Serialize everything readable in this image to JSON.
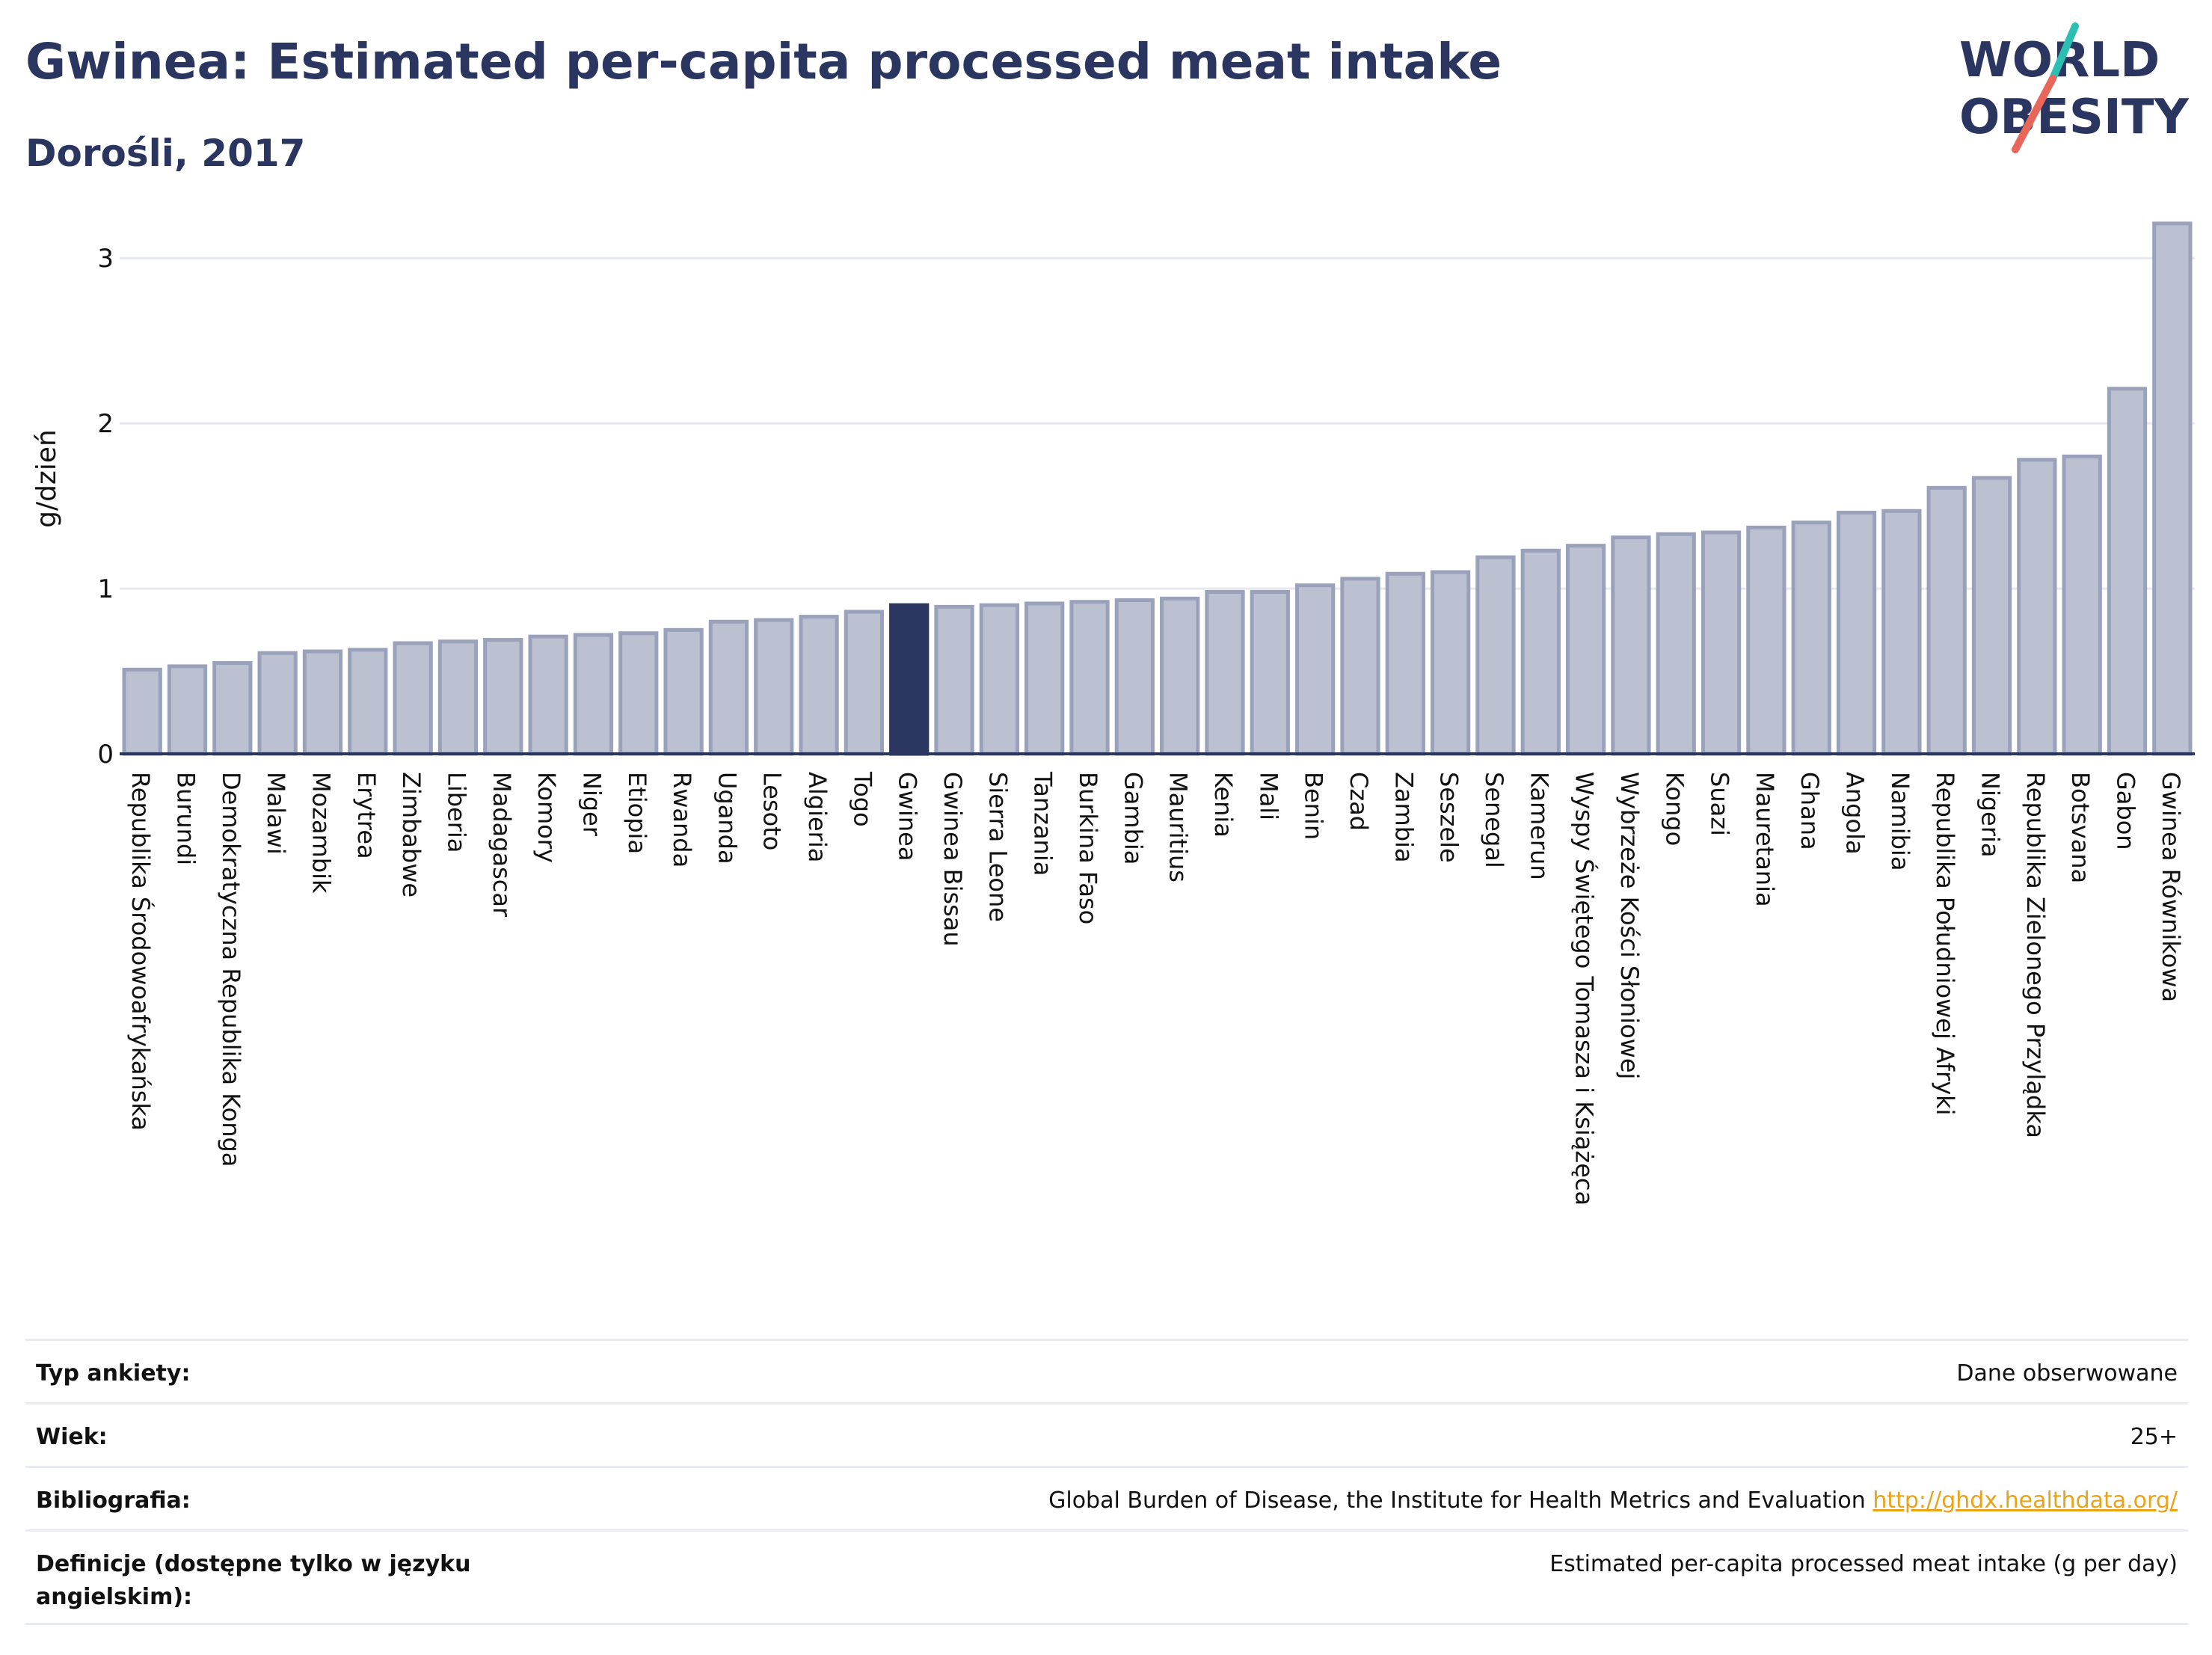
{
  "header": {
    "title": "Gwinea: Estimated per-capita processed meat intake",
    "subtitle": "Dorośli, 2017"
  },
  "logo": {
    "line1": "WORLD",
    "line2": "OBESITY",
    "colors": {
      "text": "#2b3660",
      "teal": "#2bbfb3",
      "coral": "#e8665a"
    }
  },
  "chart_data": {
    "type": "bar",
    "ylabel": "g/dzień",
    "ylim": [
      0,
      3.25
    ],
    "yticks": [
      "0",
      "1",
      "2",
      "3"
    ],
    "grid": true,
    "highlight": "Gwinea",
    "colors": {
      "bar": "#bcc1d1",
      "bar_edge": "#9aa1ba",
      "highlight": "#2b3660"
    },
    "categories": [
      "Republika Środowoafrykańska",
      "Burundi",
      "Demokratyczna Republika Konga",
      "Malawi",
      "Mozambik",
      "Erytrea",
      "Zimbabwe",
      "Liberia",
      "Madagascar",
      "Komory",
      "Niger",
      "Etiopia",
      "Rwanda",
      "Uganda",
      "Lesoto",
      "Algieria",
      "Togo",
      "Gwinea",
      "Gwinea Bissau",
      "Sierra Leone",
      "Tanzania",
      "Burkina Faso",
      "Gambia",
      "Mauritius",
      "Kenia",
      "Mali",
      "Benin",
      "Czad",
      "Zambia",
      "Seszele",
      "Senegal",
      "Kamerun",
      "Wyspy Świętego Tomasza i Książęca",
      "Wybrzeże Kości Słoniowej",
      "Kongo",
      "Suazi",
      "Mauretania",
      "Ghana",
      "Angola",
      "Namibia",
      "Republika Południowej Afryki",
      "Nigeria",
      "Republika Zielonego Przylądka",
      "Botsvana",
      "Gabon",
      "Gwinea Równikowa"
    ],
    "values": [
      0.51,
      0.53,
      0.55,
      0.61,
      0.62,
      0.63,
      0.67,
      0.68,
      0.69,
      0.71,
      0.72,
      0.73,
      0.75,
      0.8,
      0.81,
      0.83,
      0.86,
      0.9,
      0.89,
      0.9,
      0.91,
      0.92,
      0.93,
      0.94,
      0.98,
      0.98,
      1.02,
      1.06,
      1.09,
      1.1,
      1.19,
      1.23,
      1.26,
      1.31,
      1.33,
      1.34,
      1.37,
      1.4,
      1.46,
      1.47,
      1.61,
      1.67,
      1.78,
      1.8,
      2.21,
      3.21
    ]
  },
  "info": {
    "rows": [
      {
        "label": "Typ ankiety:",
        "value": "Dane obserwowane"
      },
      {
        "label": "Wiek:",
        "value": "25+"
      },
      {
        "label": "Bibliografia:",
        "value": "Global Burden of Disease, the Institute for Health Metrics and Evaluation",
        "link": "http://ghdx.healthdata.org/"
      },
      {
        "label": "Definicje (dostępne tylko w języku angielskim):",
        "value": "Estimated per-capita processed meat intake (g per day)"
      }
    ]
  }
}
